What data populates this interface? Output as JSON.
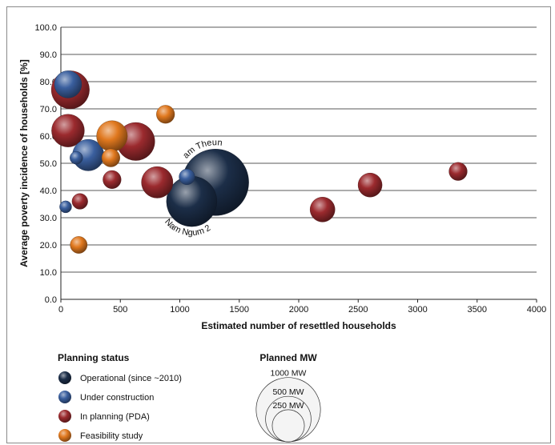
{
  "chart_data": {
    "type": "scatter",
    "xlabel": "Estimated number of resettled households",
    "ylabel": "Average poverty incidence of households [%]",
    "xlim": [
      0,
      4000
    ],
    "ylim": [
      0,
      100
    ],
    "x_ticks": [
      0,
      500,
      1000,
      1500,
      2000,
      2500,
      3000,
      3500,
      4000
    ],
    "x_tick_labels": [
      "0",
      "500",
      "1000",
      "1500",
      "2000",
      "2500",
      "3000",
      "3500",
      "4000"
    ],
    "y_ticks": [
      0,
      10,
      20,
      30,
      40,
      50,
      60,
      70,
      80,
      90,
      100
    ],
    "y_tick_labels": [
      "0.0",
      "10.0",
      "20.0",
      "30.0",
      "40.0",
      "50.0",
      "60.0",
      "70.0",
      "80.0",
      "90.0",
      "100.0"
    ],
    "grid": "horizontal",
    "bubble_size_measure": "planned MW",
    "series": [
      {
        "name": "Operational (since ~2010)",
        "color": "#1c2e48",
        "points": [
          {
            "x": 1300,
            "y": 43,
            "mw": 1070,
            "label": "Nam Theun 2"
          },
          {
            "x": 1100,
            "y": 36,
            "mw": 615,
            "label": "Nam Ngum 2"
          }
        ]
      },
      {
        "name": "Under construction",
        "color": "#3a5f9e",
        "points": [
          {
            "x": 60,
            "y": 79,
            "mw": 180
          },
          {
            "x": 230,
            "y": 53,
            "mw": 240
          },
          {
            "x": 130,
            "y": 52,
            "mw": 40
          },
          {
            "x": 40,
            "y": 34,
            "mw": 35
          },
          {
            "x": 1060,
            "y": 45,
            "mw": 60
          }
        ]
      },
      {
        "name": "In planning (PDA)",
        "color": "#9b2a2e",
        "points": [
          {
            "x": 80,
            "y": 77,
            "mw": 350
          },
          {
            "x": 60,
            "y": 62,
            "mw": 260
          },
          {
            "x": 630,
            "y": 58,
            "mw": 350
          },
          {
            "x": 810,
            "y": 43,
            "mw": 240
          },
          {
            "x": 430,
            "y": 44,
            "mw": 80
          },
          {
            "x": 160,
            "y": 36,
            "mw": 60
          },
          {
            "x": 2200,
            "y": 33,
            "mw": 150
          },
          {
            "x": 2600,
            "y": 42,
            "mw": 140
          },
          {
            "x": 3340,
            "y": 47,
            "mw": 80
          }
        ]
      },
      {
        "name": "Feasibility study",
        "color": "#e0781e",
        "points": [
          {
            "x": 430,
            "y": 60,
            "mw": 230
          },
          {
            "x": 420,
            "y": 52,
            "mw": 80
          },
          {
            "x": 880,
            "y": 68,
            "mw": 80
          },
          {
            "x": 150,
            "y": 20,
            "mw": 70
          }
        ]
      }
    ]
  },
  "legend": {
    "status_title": "Planning status",
    "status_items": [
      {
        "label": "Operational (since ~2010)",
        "color": "#1c2e48"
      },
      {
        "label": "Under construction",
        "color": "#3a5f9e"
      },
      {
        "label": "In planning (PDA)",
        "color": "#9b2a2e"
      },
      {
        "label": "Feasibility study",
        "color": "#e0781e"
      }
    ],
    "size_title": "Planned MW",
    "size_items": [
      {
        "label": "1000 MW",
        "mw": 1000
      },
      {
        "label": "500 MW",
        "mw": 500
      },
      {
        "label": "250 MW",
        "mw": 250
      }
    ]
  }
}
